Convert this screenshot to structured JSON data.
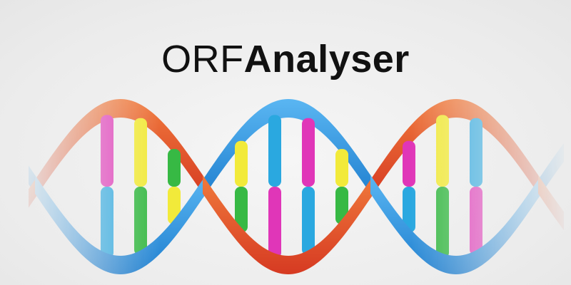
{
  "logo": {
    "prefix": "ORF",
    "suffix": "Analyser"
  },
  "colors": {
    "background": "#efefef",
    "text": "#111111",
    "strand_blue": "#2a8fdc",
    "strand_red": "#e0472a",
    "base_yellow": "#f2ea3a",
    "base_green": "#37b944",
    "base_magenta": "#e036b8",
    "base_cyan": "#2aa8e0"
  }
}
